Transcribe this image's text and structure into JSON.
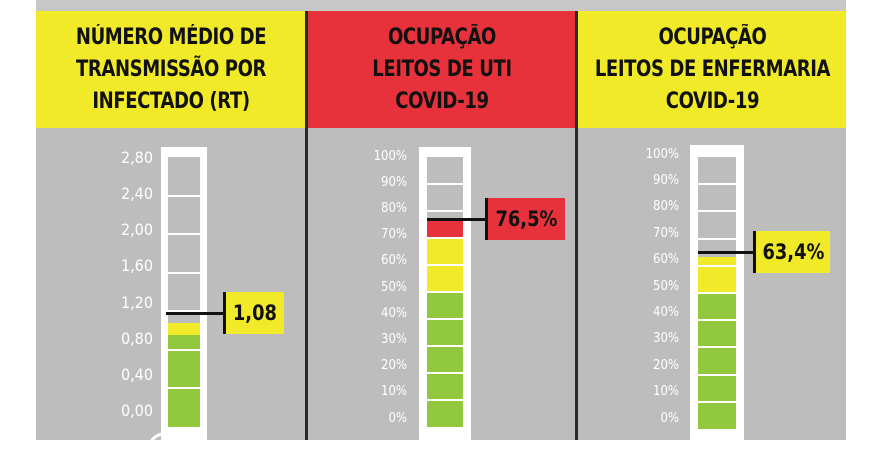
{
  "panels": [
    {
      "title_lines": [
        "NÚMERO MÉDIO DE",
        "TRANSMISSÃO POR",
        "INFECTADO (RT)"
      ],
      "header_color": "#f1ea28",
      "ticks": [
        "2,80",
        "2,40",
        "2,00",
        "1,60",
        "1,20",
        "0,80",
        "0,40",
        "0,00"
      ],
      "value_label": "1,08",
      "value": 1.08,
      "scale_max": 2.8,
      "badge_color": "#f1ea28"
    },
    {
      "title_lines": [
        "OCUPAÇÃO",
        "LEITOS DE UTI",
        "COVID-19"
      ],
      "header_color": "#e8323b",
      "ticks": [
        "100%",
        "90%",
        "80%",
        "70%",
        "60%",
        "50%",
        "40%",
        "30%",
        "20%",
        "10%",
        "0%"
      ],
      "value_label": "76,5%",
      "value": 76.5,
      "scale_max": 100,
      "badge_color": "#e8323b"
    },
    {
      "title_lines": [
        "OCUPAÇÃO",
        "LEITOS DE ENFERMARIA",
        "COVID-19"
      ],
      "header_color": "#f1ea28",
      "ticks": [
        "100%",
        "90%",
        "80%",
        "70%",
        "60%",
        "50%",
        "40%",
        "30%",
        "20%",
        "10%",
        "0%"
      ],
      "value_label": "63,4%",
      "value": 63.4,
      "scale_max": 100,
      "badge_color": "#f1ea28"
    }
  ],
  "colors": {
    "green": "#92c83e",
    "yellow": "#f1ea28",
    "red": "#e8323b",
    "panel_bg": "#bdbdbd"
  }
}
